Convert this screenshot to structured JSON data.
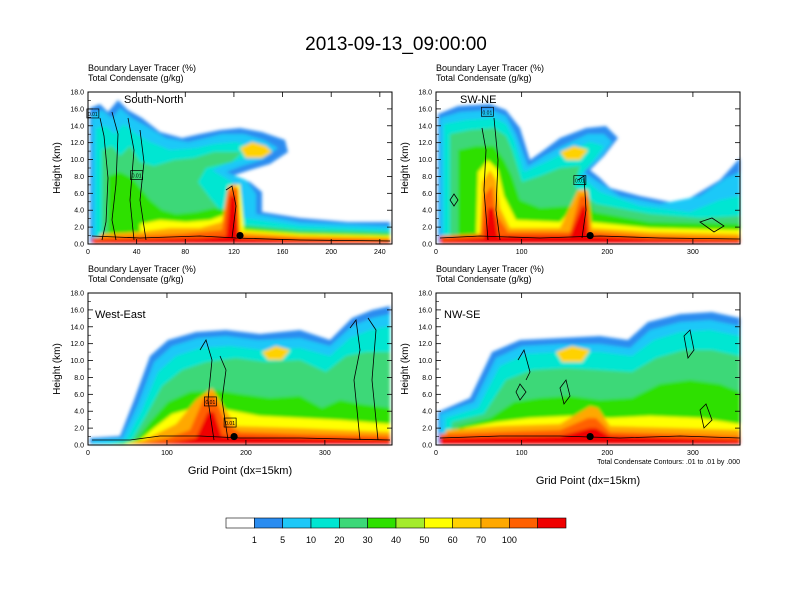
{
  "figure": {
    "title": "2013-09-13_09:00:00",
    "footnote": "Total Condensate Contours: .01 to .01 by .000"
  },
  "colorbar": {
    "labels": [
      "1",
      "5",
      "10",
      "20",
      "30",
      "40",
      "50",
      "60",
      "70",
      "100"
    ],
    "colors": [
      "#ffffff",
      "#2a8cf0",
      "#1ec8f8",
      "#00e6d2",
      "#3cd878",
      "#2ee000",
      "#a4ec2c",
      "#ffff00",
      "#ffd200",
      "#ffa800",
      "#ff6000",
      "#f00000"
    ]
  },
  "chart_data": [
    {
      "type": "heatmap",
      "label_line1": "Boundary Layer Tracer   (%)",
      "label_line2": "Total Condensate   (g/kg)",
      "panel_label": "South-North",
      "ylabel": "Height (km)",
      "xlabel": "",
      "xlim": [
        0,
        250
      ],
      "ylim": [
        0,
        18
      ],
      "xticks": [
        "0",
        "40",
        "80",
        "120",
        "160",
        "200",
        "240"
      ],
      "yticks": [
        "0.0",
        "2.0",
        "4.0",
        "6.0",
        "8.0",
        "10.0",
        "12.0",
        "14.0",
        "16.0",
        "18.0"
      ],
      "contour_labels": [
        {
          "text": "0.01",
          "x": 4,
          "y": 15.4
        },
        {
          "text": "0.01",
          "x": 40,
          "y": 8.1
        }
      ],
      "marker": {
        "x": 125,
        "y": 1.0
      }
    },
    {
      "type": "heatmap",
      "label_line1": "Boundary Layer Tracer   (%)",
      "label_line2": "Total Condensate   (g/kg)",
      "panel_label": "SW-NE",
      "ylabel": "Height (km)",
      "xlabel": "",
      "xlim": [
        0,
        355
      ],
      "ylim": [
        0,
        18
      ],
      "xticks": [
        "0",
        "100",
        "200",
        "300"
      ],
      "yticks": [
        "0.0",
        "2.0",
        "4.0",
        "6.0",
        "8.0",
        "10.0",
        "12.0",
        "14.0",
        "16.0",
        "18.0"
      ],
      "contour_labels": [
        {
          "text": "0.01",
          "x": 60,
          "y": 15.6
        },
        {
          "text": "0.01",
          "x": 168,
          "y": 7.5
        }
      ],
      "marker": {
        "x": 180,
        "y": 1.0
      }
    },
    {
      "type": "heatmap",
      "label_line1": "Boundary Layer Tracer   (%)",
      "label_line2": "Total Condensate   (g/kg)",
      "panel_label": "West-East",
      "ylabel": "Height (km)",
      "xlabel": "Grid Point (dx=15km)",
      "xlim": [
        0,
        385
      ],
      "ylim": [
        0,
        18
      ],
      "xticks": [
        "0",
        "100",
        "200",
        "300"
      ],
      "yticks": [
        "0.0",
        "2.0",
        "4.0",
        "6.0",
        "8.0",
        "10.0",
        "12.0",
        "14.0",
        "16.0",
        "18.0"
      ],
      "contour_labels": [
        {
          "text": "0.01",
          "x": 155,
          "y": 5.1
        },
        {
          "text": "0.01",
          "x": 180,
          "y": 2.6
        }
      ],
      "marker": {
        "x": 185,
        "y": 1.0
      }
    },
    {
      "type": "heatmap",
      "label_line1": "Boundary Layer Tracer   (%)",
      "label_line2": "Total Condensate   (g/kg)",
      "panel_label": "NW-SE",
      "ylabel": "Height (km)",
      "xlabel": "Grid Point (dx=15km)",
      "xlim": [
        0,
        355
      ],
      "ylim": [
        0,
        18
      ],
      "xticks": [
        "0",
        "100",
        "200",
        "300"
      ],
      "yticks": [
        "0.0",
        "2.0",
        "4.0",
        "6.0",
        "8.0",
        "10.0",
        "12.0",
        "14.0",
        "16.0",
        "18.0"
      ],
      "contour_labels": [],
      "marker": {
        "x": 180,
        "y": 1.0
      }
    }
  ]
}
